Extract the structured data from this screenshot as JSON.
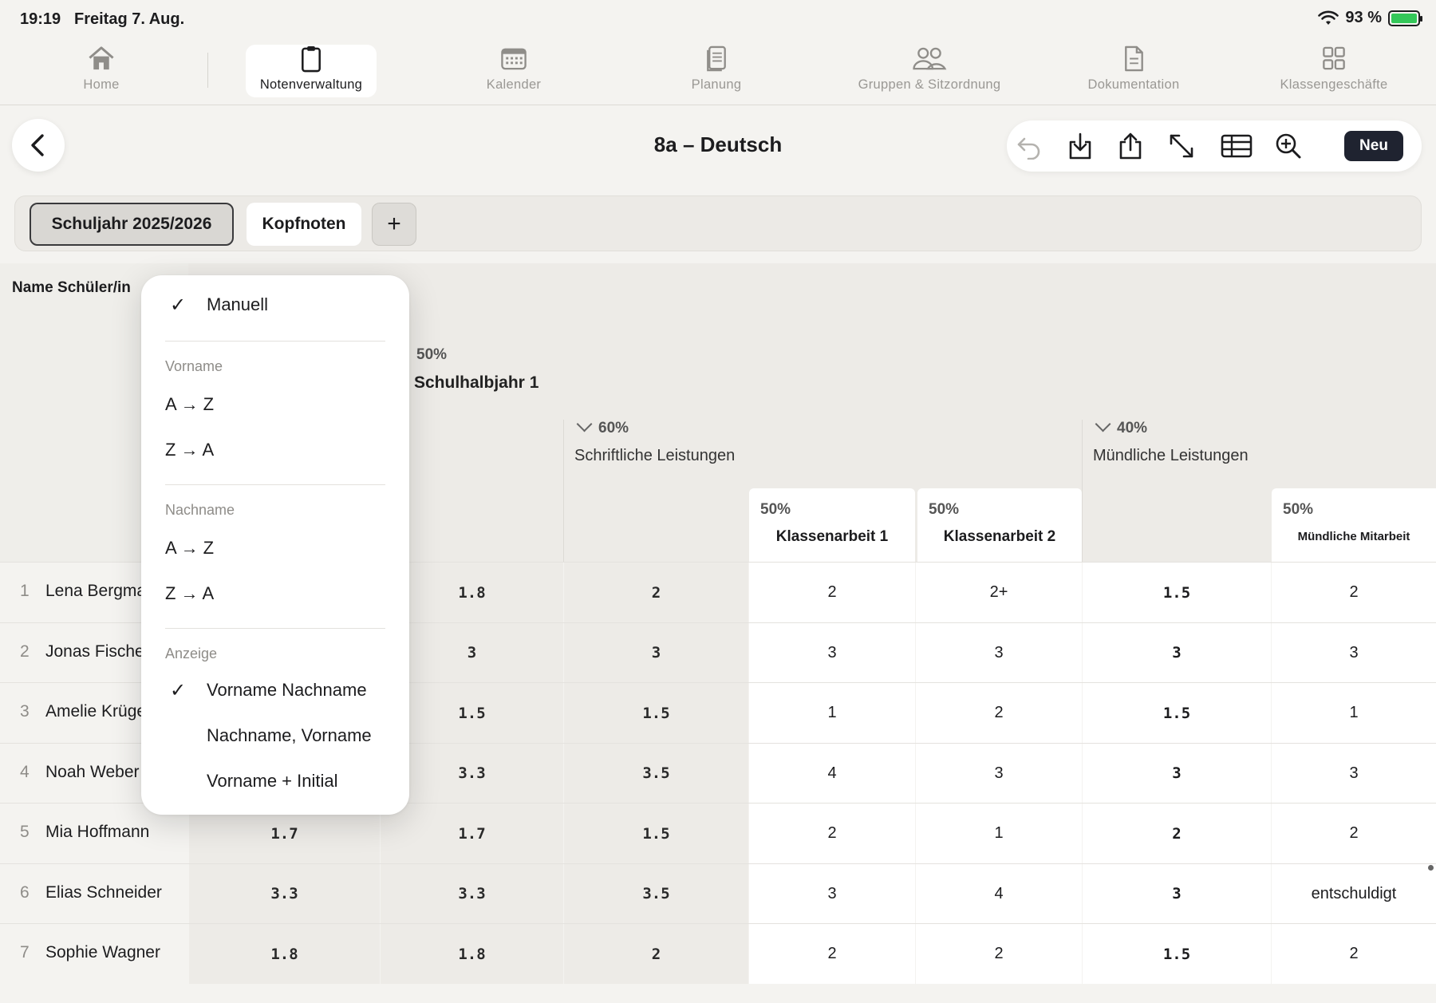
{
  "status": {
    "time": "19:19",
    "date": "Freitag 7. Aug.",
    "battery": "93 %"
  },
  "nav": {
    "home": "Home",
    "grades": "Notenverwaltung",
    "calendar": "Kalender",
    "planning": "Planung",
    "groups": "Gruppen & Sitzordnung",
    "docs": "Dokumentation",
    "class_business": "Klassengeschäfte"
  },
  "header": {
    "title": "8a – Deutsch",
    "new_label": "Neu"
  },
  "tabs": {
    "year": "Schuljahr 2025/2026",
    "head_grades": "Kopfnoten",
    "add": "+"
  },
  "grid": {
    "name_header": "Name Schüler/in",
    "half_year": {
      "pct": "50%",
      "label": "Schulhalbjahr 1"
    },
    "written": {
      "pct": "60%",
      "label": "Schriftliche Leistungen"
    },
    "oral": {
      "pct": "40%",
      "label": "Mündliche Leistungen"
    },
    "exam1": {
      "pct": "50%",
      "label": "Klassenarbeit 1"
    },
    "exam2": {
      "pct": "50%",
      "label": "Klassenarbeit 2"
    },
    "oral_part": {
      "pct": "50%",
      "label": "Mündliche Mitarbeit"
    },
    "rows": [
      {
        "num": "1",
        "name": "Lena Bergmann",
        "c1": "",
        "c2": "1.8",
        "c3": "2",
        "c4": "2",
        "c5": "2+",
        "c6": "1.5",
        "c7": "2"
      },
      {
        "num": "2",
        "name": "Jonas Fischer",
        "c1": "",
        "c2": "3",
        "c3": "3",
        "c4": "3",
        "c5": "3",
        "c6": "3",
        "c7": "3"
      },
      {
        "num": "3",
        "name": "Amelie Krüger",
        "c1": "",
        "c2": "1.5",
        "c3": "1.5",
        "c4": "1",
        "c5": "2",
        "c6": "1.5",
        "c7": "1"
      },
      {
        "num": "4",
        "name": "Noah Weber",
        "c1": "",
        "c2": "3.3",
        "c3": "3.5",
        "c4": "4",
        "c5": "3",
        "c6": "3",
        "c7": "3"
      },
      {
        "num": "5",
        "name": "Mia Hoffmann",
        "c1": "1.7",
        "c2": "1.7",
        "c3": "1.5",
        "c4": "2",
        "c5": "1",
        "c6": "2",
        "c7": "2"
      },
      {
        "num": "6",
        "name": "Elias Schneider",
        "c1": "3.3",
        "c2": "3.3",
        "c3": "3.5",
        "c4": "3",
        "c5": "4",
        "c6": "3",
        "c7": "entschuldigt"
      },
      {
        "num": "7",
        "name": "Sophie Wagner",
        "c1": "1.8",
        "c2": "1.8",
        "c3": "2",
        "c4": "2",
        "c5": "2",
        "c6": "1.5",
        "c7": "2"
      }
    ]
  },
  "dropdown": {
    "manual": "Manuell",
    "first_name_section": "Vorname",
    "last_name_section": "Nachname",
    "display_section": "Anzeige",
    "az": "A → Z",
    "za": "Z → A",
    "display_first_last": "Vorname Nachname",
    "display_last_first": "Nachname, Vorname",
    "display_first_initial": "Vorname + Initial",
    "check": "✓"
  }
}
